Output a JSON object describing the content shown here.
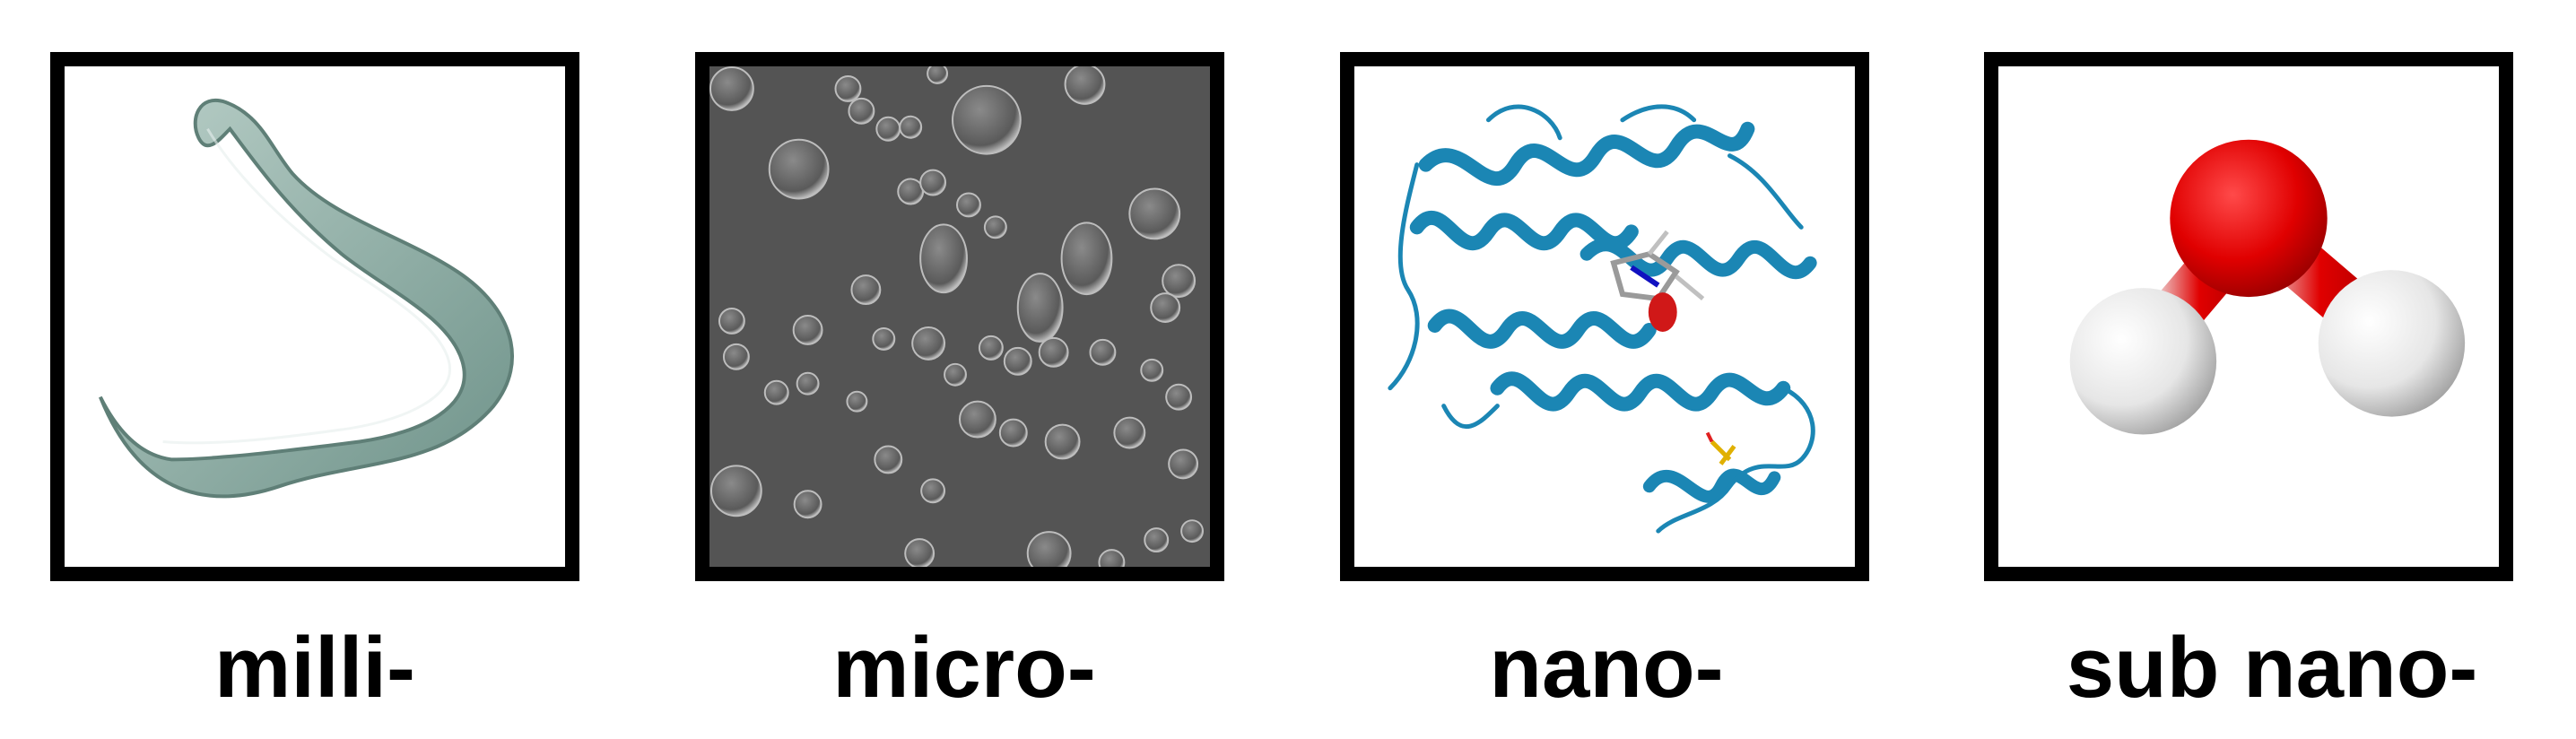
{
  "panels": [
    {
      "label": "milli-",
      "image": "nematode-worm"
    },
    {
      "label": "micro-",
      "image": "cells-micrograph"
    },
    {
      "label": "nano-",
      "image": "protein-ribbon-structure"
    },
    {
      "label": "sub nano-",
      "image": "water-molecule"
    }
  ],
  "colors": {
    "frame": "#000000",
    "worm": "#8fb0a6",
    "micrograph_bg": "#545454",
    "protein": "#1b86b4",
    "oxygen": "#e00000",
    "hydrogen": "#f2f2f2"
  }
}
